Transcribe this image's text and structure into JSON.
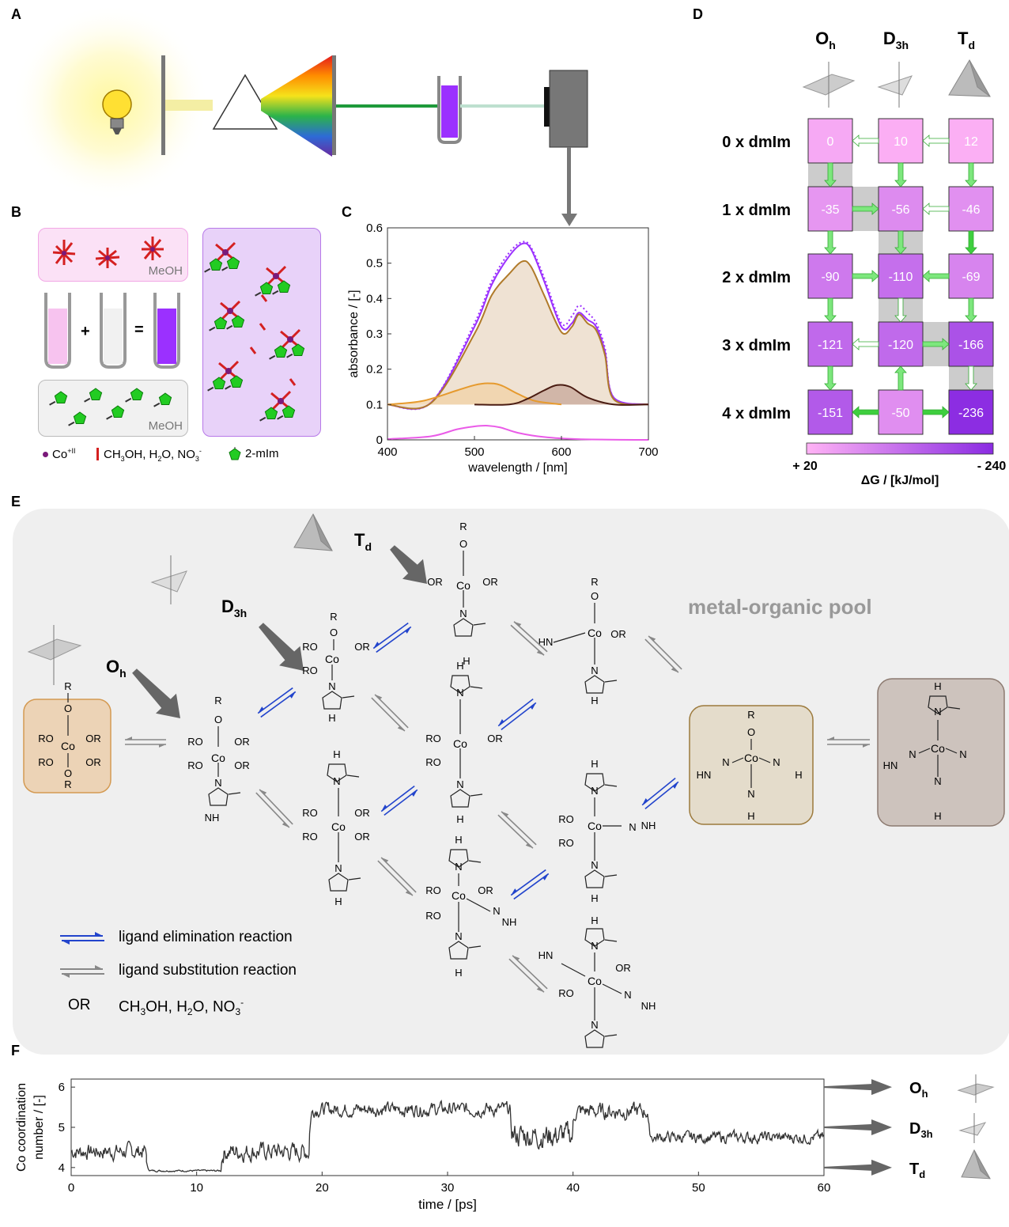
{
  "panel_labels": {
    "a": "A",
    "b": "B",
    "c": "C",
    "d": "D",
    "e": "E",
    "f": "F"
  },
  "panel_b": {
    "solvent_label_top": "MeOH",
    "solvent_label_bottom": "MeOH",
    "plus": "+",
    "equals": "=",
    "legend": [
      {
        "symbol": "co-dot-icon",
        "label": "Co+II"
      },
      {
        "symbol": "red-bar-icon",
        "label": "CH3OH, H2O, NO3-"
      },
      {
        "symbol": "pentagon-icon",
        "label": "2-mIm"
      }
    ],
    "colors": {
      "pink": "#f7d9f4",
      "purple": "#9b30ff",
      "green": "#22cc22",
      "red": "#d42020",
      "grey": "#eeeeee"
    }
  },
  "panel_c": {
    "chart_data": {
      "type": "line",
      "xlabel": "wavelength / [nm]",
      "ylabel": "absorbance / [-]",
      "xlim": [
        400,
        700
      ],
      "ylim": [
        0,
        0.6
      ],
      "xticks": [
        400,
        500,
        600,
        700
      ],
      "yticks": [
        0,
        0.1,
        0.2,
        0.3,
        0.4,
        0.5,
        0.6
      ],
      "series": [
        {
          "color": "#9b30ff",
          "style": "solid",
          "x": [
            400,
            450,
            500,
            520,
            540,
            555,
            565,
            580,
            600,
            612,
            620,
            630,
            640,
            650,
            660,
            700
          ],
          "y": [
            0.1,
            0.105,
            0.32,
            0.44,
            0.52,
            0.555,
            0.54,
            0.45,
            0.32,
            0.33,
            0.36,
            0.34,
            0.32,
            0.25,
            0.12,
            0.1
          ]
        },
        {
          "color": "#9b30ff",
          "style": "dotted",
          "x": [
            400,
            450,
            500,
            520,
            540,
            555,
            565,
            580,
            600,
            612,
            620,
            630,
            640,
            650,
            660,
            700
          ],
          "y": [
            0.1,
            0.105,
            0.33,
            0.45,
            0.53,
            0.56,
            0.545,
            0.46,
            0.33,
            0.35,
            0.38,
            0.36,
            0.33,
            0.26,
            0.12,
            0.1
          ]
        },
        {
          "color": "#b07a2a",
          "style": "solid",
          "fill": "#e9d8c4",
          "x": [
            400,
            450,
            500,
            520,
            540,
            555,
            565,
            580,
            600,
            612,
            620,
            630,
            640,
            650,
            660,
            700
          ],
          "y": [
            0.1,
            0.104,
            0.3,
            0.41,
            0.47,
            0.505,
            0.49,
            0.41,
            0.305,
            0.32,
            0.355,
            0.33,
            0.31,
            0.24,
            0.115,
            0.1
          ]
        },
        {
          "color": "#e69a2e",
          "style": "solid",
          "fill": "#f1d2a6",
          "x": [
            400,
            440,
            480,
            500,
            515,
            530,
            550,
            570,
            600
          ],
          "y": [
            0.1,
            0.11,
            0.14,
            0.155,
            0.16,
            0.155,
            0.13,
            0.11,
            0.1
          ]
        },
        {
          "color": "#4a1c12",
          "style": "solid",
          "fill": "#c7a79a",
          "x": [
            500,
            540,
            560,
            580,
            595,
            610,
            630,
            660,
            700
          ],
          "y": [
            0.1,
            0.1,
            0.115,
            0.14,
            0.155,
            0.15,
            0.12,
            0.1,
            0.1
          ]
        },
        {
          "color": "#ea5be8",
          "style": "solid",
          "x": [
            400,
            450,
            480,
            500,
            515,
            530,
            550,
            580,
            620,
            700
          ],
          "y": [
            0.002,
            0.01,
            0.03,
            0.038,
            0.04,
            0.035,
            0.02,
            0.008,
            0.002,
            0.0
          ]
        }
      ]
    }
  },
  "panel_d": {
    "columns": [
      "O",
      "D",
      "T"
    ],
    "column_subs": [
      "h",
      "3h",
      "d"
    ],
    "rows": [
      "0 x dmIm",
      "1 x dmIm",
      "2 x dmIm",
      "3 x dmIm",
      "4 x dmIm"
    ],
    "values": [
      [
        "0",
        "10",
        "12"
      ],
      [
        "-35",
        "-56",
        "-46"
      ],
      [
        "-90",
        "-110",
        "-69"
      ],
      [
        "-121",
        "-120",
        "-166"
      ],
      [
        "-151",
        "-50",
        "-236"
      ]
    ],
    "chart_data": {
      "type": "heatmap",
      "x": [
        "Oh",
        "D3h",
        "Td"
      ],
      "y": [
        "0 x dmIm",
        "1 x dmIm",
        "2 x dmIm",
        "3 x dmIm",
        "4 x dmIm"
      ],
      "values": [
        [
          0,
          10,
          12
        ],
        [
          -35,
          -56,
          -46
        ],
        [
          -90,
          -110,
          -69
        ],
        [
          -121,
          -120,
          -166
        ],
        [
          -151,
          -50,
          -236
        ]
      ],
      "colorbar": {
        "min_label": "+ 20",
        "max_label": "- 240",
        "label": "ΔG / [kJ/mol]",
        "range": [
          20,
          -240
        ],
        "colors": [
          "#ffb3f5",
          "#8a2be2"
        ]
      }
    }
  },
  "panel_e": {
    "pool_label": "metal-organic pool",
    "geometry_labels": [
      {
        "main": "O",
        "sub": "h"
      },
      {
        "main": "D",
        "sub": "3h"
      },
      {
        "main": "T",
        "sub": "d"
      }
    ],
    "legend": [
      {
        "icon": "blue-double-arrow-icon",
        "label": "ligand elimination reaction"
      },
      {
        "icon": "grey-double-arrow-icon",
        "label": "ligand substitution reaction"
      },
      {
        "key": "OR",
        "label": "CH3OH, H2O, NO3-"
      }
    ],
    "atoms": {
      "co": "Co",
      "or": "OR",
      "ro": "RO",
      "r": "R",
      "o": "O",
      "n": "N",
      "nh": "NH",
      "hn": "HN",
      "h": "H"
    }
  },
  "panel_f": {
    "chart_data": {
      "type": "line",
      "xlabel": "time / [ps]",
      "ylabel": "Co coordination number / [-]",
      "ylabel_lines": [
        "Co coordination",
        "number / [-]"
      ],
      "xlim": [
        0,
        60
      ],
      "ylim": [
        3.8,
        6.2
      ],
      "xticks": [
        0,
        10,
        20,
        30,
        40,
        50,
        60
      ],
      "yticks": [
        4,
        5,
        6
      ],
      "segments": [
        {
          "x": [
            0,
            6
          ],
          "level": 4.4,
          "spread": 0.35
        },
        {
          "x": [
            6,
            12
          ],
          "level": 3.92,
          "spread": 0.04
        },
        {
          "x": [
            12,
            19
          ],
          "level": 4.4,
          "spread": 0.4
        },
        {
          "x": [
            19,
            35
          ],
          "level": 5.45,
          "spread": 0.3
        },
        {
          "x": [
            35,
            40
          ],
          "level": 4.8,
          "spread": 0.55
        },
        {
          "x": [
            40,
            46
          ],
          "level": 5.4,
          "spread": 0.35
        },
        {
          "x": [
            46,
            60
          ],
          "level": 4.75,
          "spread": 0.25
        }
      ],
      "levels": [
        {
          "y": 6,
          "label": "O",
          "sub": "h"
        },
        {
          "y": 5,
          "label": "D",
          "sub": "3h"
        },
        {
          "y": 4,
          "label": "T",
          "sub": "d"
        }
      ]
    }
  }
}
